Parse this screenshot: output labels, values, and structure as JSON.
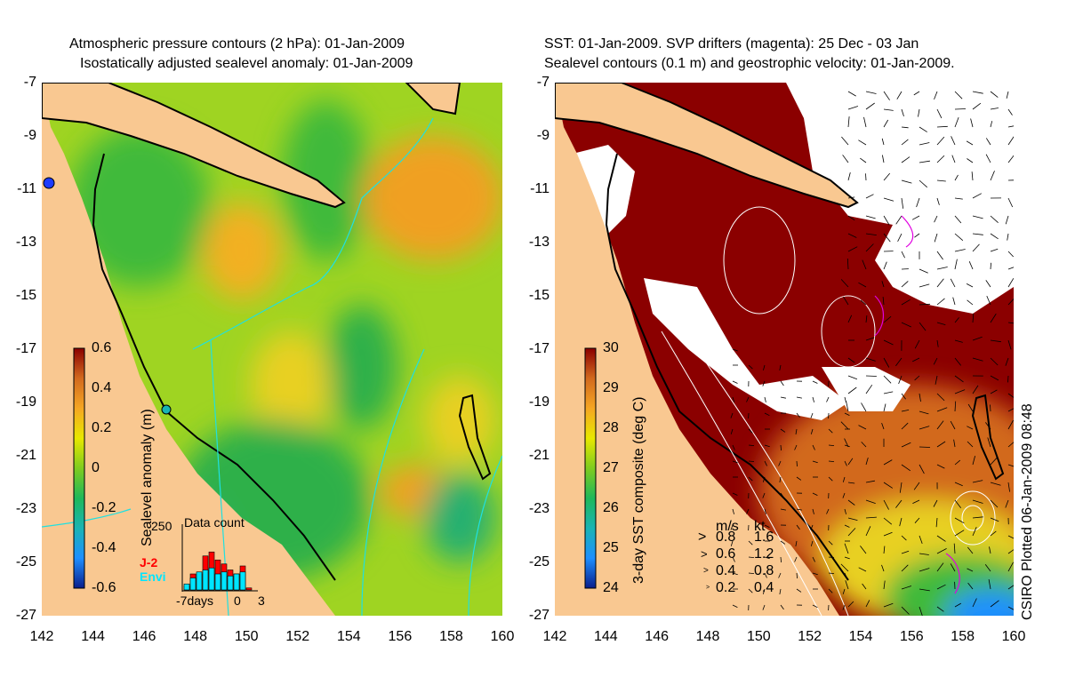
{
  "chart_data": [
    {
      "type": "heatmap",
      "title_lines": [
        "Atmospheric pressure contours (2 hPa): 01-Jan-2009",
        "Isostatically adjusted sealevel anomaly: 01-Jan-2009"
      ],
      "xlim": [
        142,
        160
      ],
      "ylim": [
        -27,
        -7
      ],
      "x_ticks": [
        "142",
        "144",
        "146",
        "148",
        "150",
        "152",
        "154",
        "156",
        "158",
        "160"
      ],
      "y_ticks": [
        "-7",
        "-9",
        "-11",
        "-13",
        "-15",
        "-17",
        "-19",
        "-21",
        "-23",
        "-25",
        "-27"
      ],
      "colorbar": {
        "label": "Sealevel anomaly (m)",
        "range": [
          -0.6,
          0.6
        ],
        "ticks": [
          "0.6",
          "0.4",
          "0.2",
          "0",
          "-0.2",
          "-0.4",
          "-0.6"
        ],
        "colors": [
          "#8b0000",
          "#d2691e",
          "#f5a623",
          "#e8e800",
          "#7fcc1f",
          "#1fb85a",
          "#19b4b4",
          "#1e8fff",
          "#0a1e8c"
        ]
      },
      "inset": {
        "label": "Data count",
        "y_tick": "250",
        "series": [
          {
            "name": "J-2",
            "color": "#ff0000"
          },
          {
            "name": "Envi",
            "color": "#00e5ff"
          }
        ],
        "x_labels": [
          "-7days",
          "0",
          "3"
        ],
        "bars_j2": [
          10,
          40,
          40,
          85,
          95,
          75,
          65,
          50,
          40,
          60,
          5,
          0
        ],
        "bars_envi": [
          15,
          30,
          45,
          50,
          55,
          40,
          45,
          35,
          40,
          45,
          0,
          0
        ]
      },
      "land_color": "#f9c891"
    },
    {
      "type": "heatmap",
      "title_lines": [
        "SST: 01-Jan-2009. SVP drifters (magenta): 25 Dec - 03 Jan",
        "Sealevel contours (0.1 m) and geostrophic velocity: 01-Jan-2009."
      ],
      "xlim": [
        142,
        160
      ],
      "ylim": [
        -27,
        -7
      ],
      "x_ticks": [
        "142",
        "144",
        "146",
        "148",
        "150",
        "152",
        "154",
        "156",
        "158",
        "160"
      ],
      "y_ticks": [
        "-7",
        "-9",
        "-11",
        "-13",
        "-15",
        "-17",
        "-19",
        "-21",
        "-23",
        "-25",
        "-27"
      ],
      "colorbar": {
        "label": "3-day SST composite (deg C)",
        "range": [
          24,
          30
        ],
        "ticks": [
          "30",
          "29",
          "28",
          "27",
          "26",
          "25",
          "24"
        ],
        "colors": [
          "#8b0000",
          "#d2691e",
          "#f5a623",
          "#e8e800",
          "#7fcc1f",
          "#1fb85a",
          "#19b4b4",
          "#1e8fff",
          "#0a1e8c"
        ]
      },
      "velocity_key": {
        "headers": [
          "m/s",
          "kt"
        ],
        "rows": [
          [
            "0.8",
            "1.6"
          ],
          [
            "0.6",
            "1.2"
          ],
          [
            "0.4",
            "0.8"
          ],
          [
            "0.2",
            "0.4"
          ]
        ]
      },
      "credit": "CSIRO Plotted 06-Jan-2009 08:48"
    }
  ]
}
